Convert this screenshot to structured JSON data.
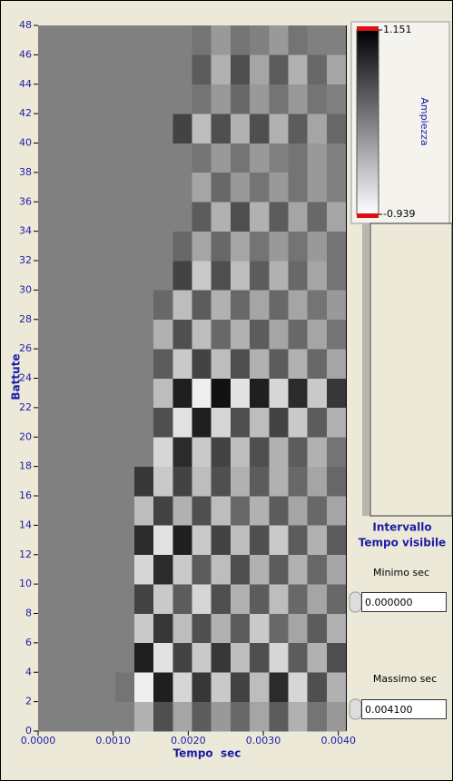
{
  "chart_data": {
    "type": "heatmap",
    "xlabel": "Tempo  sec",
    "ylabel": "Battute",
    "xlim": [
      0,
      0.0041
    ],
    "ylim": [
      0,
      48
    ],
    "xticks": [
      {
        "value": 0,
        "label": "0.0000"
      },
      {
        "value": 0.001,
        "label": "0.0010"
      },
      {
        "value": 0.002,
        "label": "0.0020"
      },
      {
        "value": 0.003,
        "label": "0.0030"
      },
      {
        "value": 0.004,
        "label": "0.0040"
      }
    ],
    "yticks": [
      0,
      2,
      4,
      6,
      8,
      10,
      12,
      14,
      16,
      18,
      20,
      22,
      24,
      26,
      28,
      30,
      32,
      34,
      36,
      38,
      40,
      42,
      44,
      46,
      48
    ],
    "xbins": [
      0,
      0.00025625,
      0.0005125,
      0.00076875,
      0.001025,
      0.00128125,
      0.0015375,
      0.00179375,
      0.00205,
      0.00230625,
      0.0025625,
      0.00281875,
      0.003075,
      0.00333125,
      0.0035875,
      0.00384375,
      0.0041
    ],
    "ybins": [
      0,
      2,
      4,
      6,
      8,
      10,
      12,
      14,
      16,
      18,
      20,
      22,
      24,
      26,
      28,
      30,
      32,
      34,
      36,
      38,
      40,
      42,
      44,
      46,
      48
    ],
    "z": [
      [
        0.1,
        0.1,
        0.1,
        0.1,
        0.1,
        -0.3,
        0.5,
        -0.2,
        0.4,
        -0.1,
        0.3,
        -0.2,
        0.4,
        -0.3,
        0.2,
        -0.1
      ],
      [
        0.1,
        0.1,
        0.1,
        0.1,
        0.2,
        -0.8,
        0.9,
        -0.6,
        0.7,
        -0.5,
        0.6,
        -0.4,
        0.8,
        -0.6,
        0.5,
        -0.3
      ],
      [
        0.1,
        0.1,
        0.1,
        0.1,
        0.1,
        0.9,
        -0.7,
        0.6,
        -0.5,
        0.7,
        -0.4,
        0.5,
        -0.6,
        0.4,
        -0.3,
        0.5
      ],
      [
        0.1,
        0.1,
        0.1,
        0.1,
        0.1,
        -0.5,
        0.7,
        -0.4,
        0.5,
        -0.3,
        0.4,
        -0.5,
        0.3,
        -0.2,
        0.4,
        -0.3
      ],
      [
        0.1,
        0.1,
        0.1,
        0.1,
        0.1,
        0.6,
        -0.5,
        0.4,
        -0.6,
        0.5,
        -0.3,
        0.4,
        -0.4,
        0.3,
        -0.2,
        0.3
      ],
      [
        0.1,
        0.1,
        0.1,
        0.1,
        0.1,
        -0.6,
        0.8,
        -0.5,
        0.4,
        -0.4,
        0.5,
        -0.3,
        0.4,
        -0.3,
        0.3,
        -0.2
      ],
      [
        0.1,
        0.1,
        0.1,
        0.1,
        0.1,
        0.8,
        -0.7,
        0.9,
        -0.5,
        0.6,
        -0.4,
        0.5,
        -0.5,
        0.4,
        -0.3,
        0.4
      ],
      [
        0.1,
        0.1,
        0.1,
        0.1,
        0.1,
        -0.4,
        0.6,
        -0.3,
        0.5,
        -0.4,
        0.3,
        -0.3,
        0.4,
        -0.2,
        0.3,
        -0.2
      ],
      [
        0.1,
        0.1,
        0.1,
        0.1,
        0.1,
        0.7,
        -0.5,
        0.6,
        -0.4,
        0.5,
        -0.3,
        0.4,
        -0.3,
        0.3,
        -0.2,
        0.3
      ],
      [
        0.1,
        0.1,
        0.1,
        0.1,
        0.1,
        0.1,
        -0.6,
        0.8,
        -0.5,
        0.6,
        -0.4,
        0.5,
        -0.3,
        0.4,
        -0.3,
        0.2
      ],
      [
        0.1,
        0.1,
        0.1,
        0.1,
        0.1,
        0.1,
        0.5,
        -0.7,
        0.9,
        -0.6,
        0.5,
        -0.4,
        0.6,
        -0.5,
        0.4,
        -0.3
      ],
      [
        0.1,
        0.1,
        0.1,
        0.1,
        0.1,
        0.1,
        -0.4,
        0.9,
        -0.8,
        1.0,
        -0.7,
        0.9,
        -0.6,
        0.8,
        -0.5,
        0.7
      ],
      [
        0.1,
        0.1,
        0.1,
        0.1,
        0.1,
        0.1,
        0.4,
        -0.5,
        0.6,
        -0.4,
        0.5,
        -0.3,
        0.4,
        -0.3,
        0.3,
        -0.2
      ],
      [
        0.1,
        0.1,
        0.1,
        0.1,
        0.1,
        0.1,
        -0.3,
        0.5,
        -0.4,
        0.3,
        -0.3,
        0.4,
        -0.2,
        0.3,
        -0.2,
        0.2
      ],
      [
        0.1,
        0.1,
        0.1,
        0.1,
        0.1,
        0.1,
        0.3,
        -0.4,
        0.4,
        -0.3,
        0.3,
        -0.2,
        0.3,
        -0.2,
        0.2,
        -0.1
      ],
      [
        0.1,
        0.1,
        0.1,
        0.1,
        0.1,
        0.1,
        0.1,
        0.6,
        -0.5,
        0.5,
        -0.4,
        0.4,
        -0.3,
        0.3,
        -0.2,
        0.2
      ],
      [
        0.1,
        0.1,
        0.1,
        0.1,
        0.1,
        0.1,
        0.1,
        0.3,
        -0.2,
        0.3,
        -0.2,
        0.2,
        -0.1,
        0.2,
        -0.1,
        0.2
      ],
      [
        0.1,
        0.1,
        0.1,
        0.1,
        0.1,
        0.1,
        0.1,
        0.1,
        0.4,
        -0.3,
        0.5,
        -0.3,
        0.4,
        -0.2,
        0.3,
        -0.2
      ],
      [
        0.1,
        0.1,
        0.1,
        0.1,
        0.1,
        0.1,
        0.1,
        0.1,
        -0.2,
        0.3,
        -0.1,
        0.2,
        -0.1,
        0.2,
        -0.1,
        0.1
      ],
      [
        0.1,
        0.1,
        0.1,
        0.1,
        0.1,
        0.1,
        0.1,
        0.1,
        0.2,
        -0.1,
        0.2,
        -0.1,
        0.1,
        0.2,
        -0.1,
        0.1
      ],
      [
        0.1,
        0.1,
        0.1,
        0.1,
        0.1,
        0.1,
        0.1,
        0.6,
        -0.4,
        0.5,
        -0.3,
        0.5,
        -0.3,
        0.4,
        -0.2,
        0.3
      ],
      [
        0.1,
        0.1,
        0.1,
        0.1,
        0.1,
        0.1,
        0.1,
        0.1,
        0.2,
        -0.1,
        0.3,
        -0.1,
        0.2,
        -0.1,
        0.2,
        0.1
      ],
      [
        0.1,
        0.1,
        0.1,
        0.1,
        0.1,
        0.1,
        0.1,
        0.1,
        0.4,
        -0.3,
        0.5,
        -0.2,
        0.4,
        -0.3,
        0.3,
        -0.2
      ],
      [
        0.1,
        0.1,
        0.1,
        0.1,
        0.1,
        0.1,
        0.1,
        0.1,
        0.2,
        -0.1,
        0.2,
        0.1,
        -0.1,
        0.2,
        0.1,
        0.1
      ]
    ],
    "colorbar": {
      "label": "Ampiezza",
      "zlim": [
        -0.939,
        1.151
      ],
      "ticks": [
        -0.939,
        1.151
      ],
      "colors": [
        "#ffffff",
        "#000000"
      ]
    }
  },
  "controls": {
    "title_line1": "Intervallo",
    "title_line2": "Tempo visibile",
    "minimum": {
      "label": "Minimo sec",
      "value": "0.000000"
    },
    "maximum": {
      "label": "Massimo sec",
      "value": "0.004100"
    }
  }
}
